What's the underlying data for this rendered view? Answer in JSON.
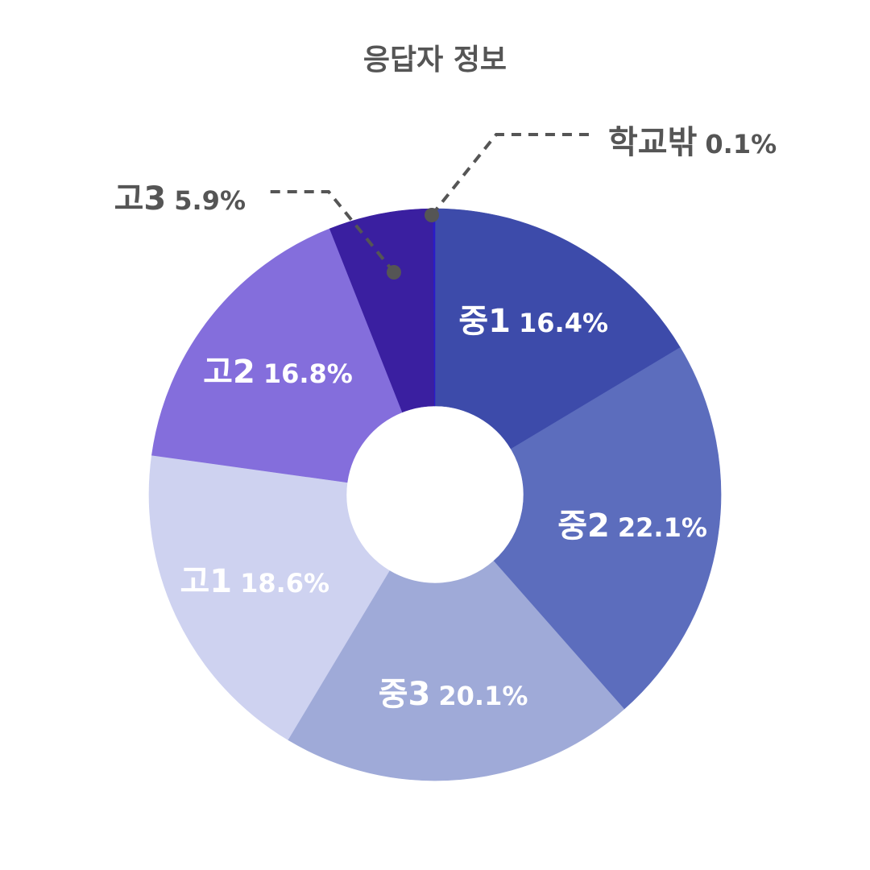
{
  "chart_data": {
    "type": "pie",
    "title": "응답자 정보",
    "donut": true,
    "start_angle_deg": 0,
    "direction": "clockwise",
    "slices": [
      {
        "label": "중1",
        "value": 16.4,
        "display": "16.4%",
        "color": "#3D4BAA",
        "label_color": "#ffffff",
        "label_position": "inside"
      },
      {
        "label": "중2",
        "value": 22.1,
        "display": "22.1%",
        "color": "#5C6DBD",
        "label_color": "#ffffff",
        "label_position": "inside"
      },
      {
        "label": "중3",
        "value": 20.1,
        "display": "20.1%",
        "color": "#9FAAD8",
        "label_color": "#ffffff",
        "label_position": "inside"
      },
      {
        "label": "고1",
        "value": 18.6,
        "display": "18.6%",
        "color": "#CED2F0",
        "label_color": "#ffffff",
        "label_position": "inside"
      },
      {
        "label": "고2",
        "value": 16.8,
        "display": "16.8%",
        "color": "#846EDC",
        "label_color": "#ffffff",
        "label_position": "inside"
      },
      {
        "label": "고3",
        "value": 5.9,
        "display": "5.9%",
        "color": "#3A1FA0",
        "label_color": "#555555",
        "label_position": "outside-left"
      },
      {
        "label": "학교밖",
        "value": 0.1,
        "display": "0.1%",
        "color": "#2A1CC8",
        "label_color": "#555555",
        "label_position": "outside-right"
      }
    ]
  }
}
